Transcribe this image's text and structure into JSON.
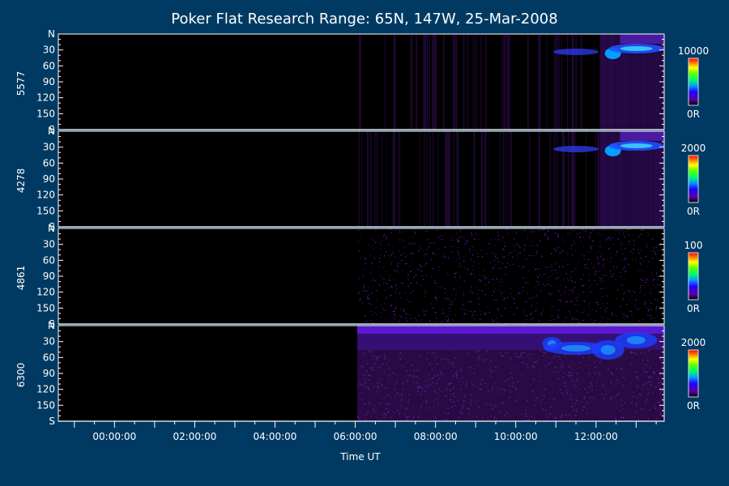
{
  "chart_data": {
    "type": "heatmap",
    "title": "Poker Flat Research Range: 65N, 147W, 25-Mar-2008",
    "xlabel": "Time UT",
    "x_tick_labels": [
      "00:00:00",
      "02:00:00",
      "04:00:00",
      "06:00:00",
      "08:00:00",
      "10:00:00",
      "12:00:00"
    ],
    "x_tick_hours": [
      0,
      2,
      4,
      6,
      8,
      10,
      12
    ],
    "x_range_hours": [
      -1.4,
      13.7
    ],
    "data_start_hours": 6.05,
    "y_range": [
      0,
      180
    ],
    "y_tick_labels": [
      "N",
      "30",
      "60",
      "90",
      "120",
      "150",
      "S"
    ],
    "y_tick_values": [
      0,
      30,
      60,
      90,
      120,
      150,
      180
    ],
    "colorscale": [
      "#000000",
      "#3a0060",
      "#6a00a8",
      "#2a00ff",
      "#0040ff",
      "#00c0ff",
      "#00ff80",
      "#40ff00",
      "#ffff00",
      "#ff8000",
      "#ff0000"
    ],
    "panels": [
      {
        "label": "5577",
        "cbar_max": "10000",
        "cbar_min": "0R"
      },
      {
        "label": "4278",
        "cbar_max": "2000",
        "cbar_min": "0R"
      },
      {
        "label": "4861",
        "cbar_max": "100",
        "cbar_min": "0R"
      },
      {
        "label": "6300",
        "cbar_max": "2000",
        "cbar_min": "0R"
      }
    ]
  }
}
